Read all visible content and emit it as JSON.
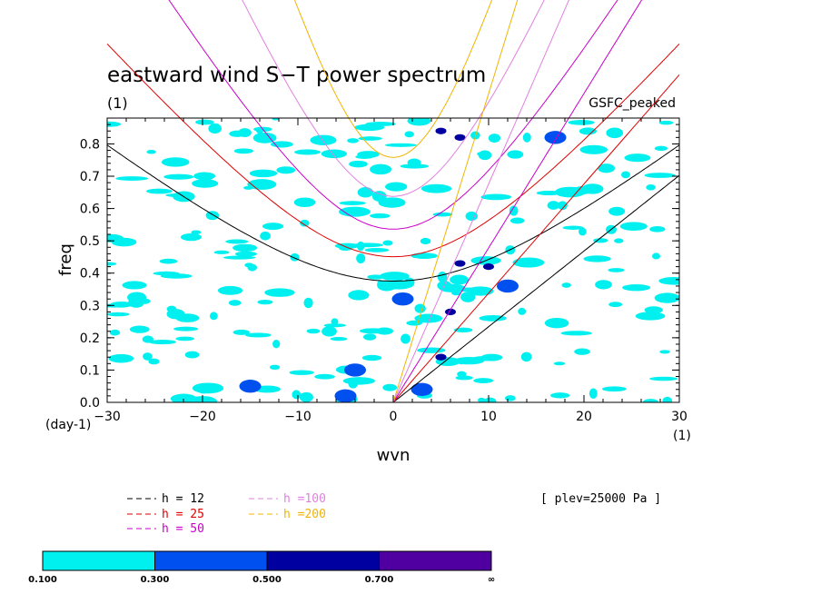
{
  "chart_data": {
    "type": "contour",
    "title": "eastward wind S−T power spectrum",
    "subtitle_left": "(1)",
    "subtitle_right": "GSFC_peaked",
    "xlabel": "wvn",
    "ylabel": "freq",
    "xunit": "(1)",
    "yunit": "(day-1)",
    "xlim": [
      -30,
      30
    ],
    "ylim": [
      0,
      0.88
    ],
    "xticks": [
      -30,
      -20,
      -10,
      0,
      10,
      20,
      30
    ],
    "xtick_labels": [
      "−30",
      "−20",
      "−10",
      "0",
      "10",
      "20",
      "30"
    ],
    "yticks": [
      0.0,
      0.1,
      0.2,
      0.3,
      0.4,
      0.5,
      0.6,
      0.7,
      0.8
    ],
    "ytick_labels": [
      "0.0",
      "0.1",
      "0.2",
      "0.3",
      "0.4",
      "0.5",
      "0.6",
      "0.7",
      "0.8"
    ],
    "annotation": "[ plev=25000 Pa ]",
    "dispersion_curves": [
      {
        "label": "h = 12",
        "h": 12,
        "color": "#000000"
      },
      {
        "label": "h = 25",
        "h": 25,
        "color": "#e00000"
      },
      {
        "label": "h = 50",
        "h": 50,
        "color": "#c800c8"
      },
      {
        "label": "h =100",
        "h": 100,
        "color": "#e080e0"
      },
      {
        "label": "h =200",
        "h": 200,
        "color": "#f0b400"
      }
    ],
    "colorbar": {
      "levels": [
        "0.100",
        "0.300",
        "0.500",
        "0.700",
        "∞"
      ],
      "colors": [
        "#00f0f0",
        "#0050f0",
        "#0000a0",
        "#5000a0"
      ]
    },
    "power_patches": [
      {
        "x": -5,
        "y": 0.02,
        "level": 2
      },
      {
        "x": -5,
        "y": 0.02,
        "level": 1
      },
      {
        "x": 3,
        "y": 0.04,
        "level": 2
      },
      {
        "x": 3,
        "y": 0.04,
        "level": 1
      },
      {
        "x": 5,
        "y": 0.14,
        "level": 3
      },
      {
        "x": 5,
        "y": 0.14,
        "level": 2
      },
      {
        "x": 7,
        "y": 0.43,
        "level": 2
      },
      {
        "x": 10,
        "y": 0.42,
        "level": 2
      },
      {
        "x": 6,
        "y": 0.28,
        "level": 2
      },
      {
        "x": 5,
        "y": 0.84,
        "level": 2
      },
      {
        "x": 7,
        "y": 0.82,
        "level": 2
      },
      {
        "x": 17,
        "y": 0.82,
        "level": 1
      },
      {
        "x": -4,
        "y": 0.1,
        "level": 1
      },
      {
        "x": 1,
        "y": 0.32,
        "level": 1
      },
      {
        "x": -15,
        "y": 0.05,
        "level": 1
      },
      {
        "x": 12,
        "y": 0.36,
        "level": 1
      }
    ]
  },
  "legend": {
    "h12": "h = 12",
    "h25": "h = 25",
    "h50": "h = 50",
    "h100": "h =100",
    "h200": "h =200"
  }
}
